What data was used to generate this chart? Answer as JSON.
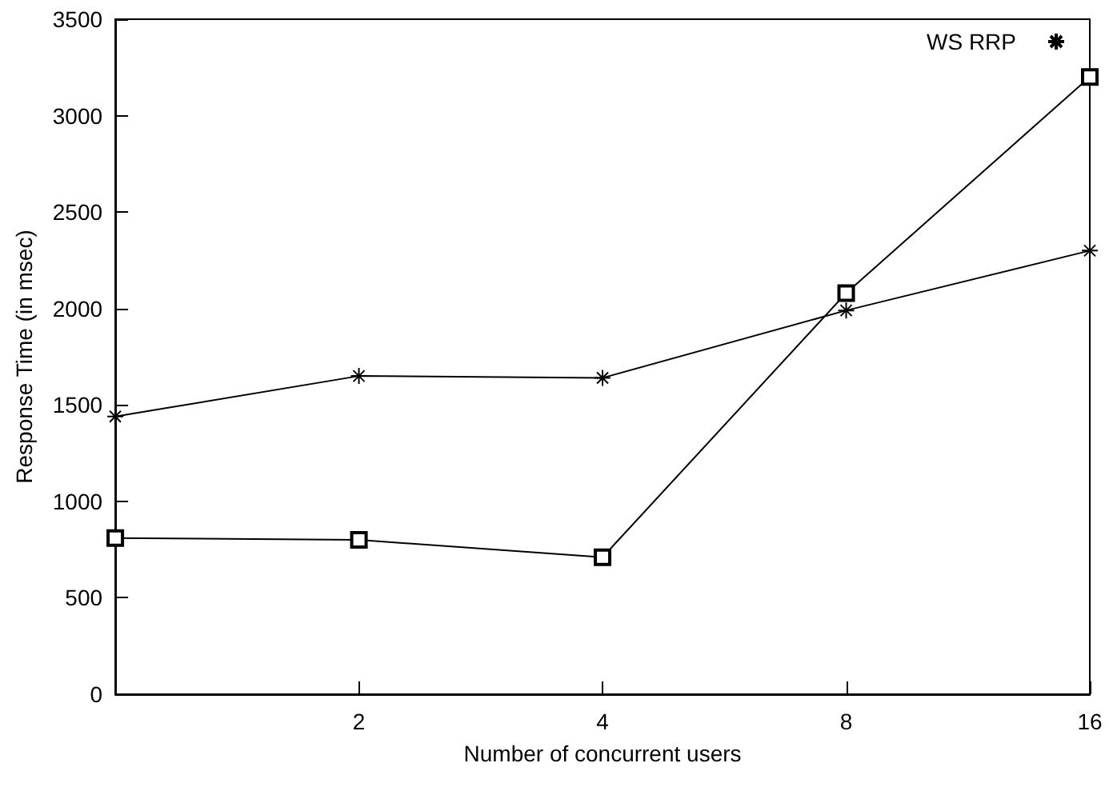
{
  "chart_data": {
    "type": "line",
    "xlabel": "Number of concurrent users",
    "ylabel": "Response Time (in msec)",
    "log": "x",
    "x": [
      1,
      2,
      4,
      8,
      16
    ],
    "xlim": [
      1,
      16
    ],
    "xticks": [
      2,
      4,
      8,
      16
    ],
    "ylim": [
      0,
      3500
    ],
    "yticks": [
      0,
      500,
      1000,
      1500,
      2000,
      2500,
      3000,
      3500
    ],
    "series": [
      {
        "name": "WS RRP",
        "color": "#000000",
        "marker": "cross",
        "values": [
          1440,
          1650,
          1640,
          1990,
          2300
        ]
      },
      {
        "color": "#000000",
        "marker": "square",
        "values": [
          810,
          800,
          710,
          2080,
          3200
        ]
      }
    ],
    "grid": false,
    "legend": "top right",
    "line_style": "solid"
  }
}
